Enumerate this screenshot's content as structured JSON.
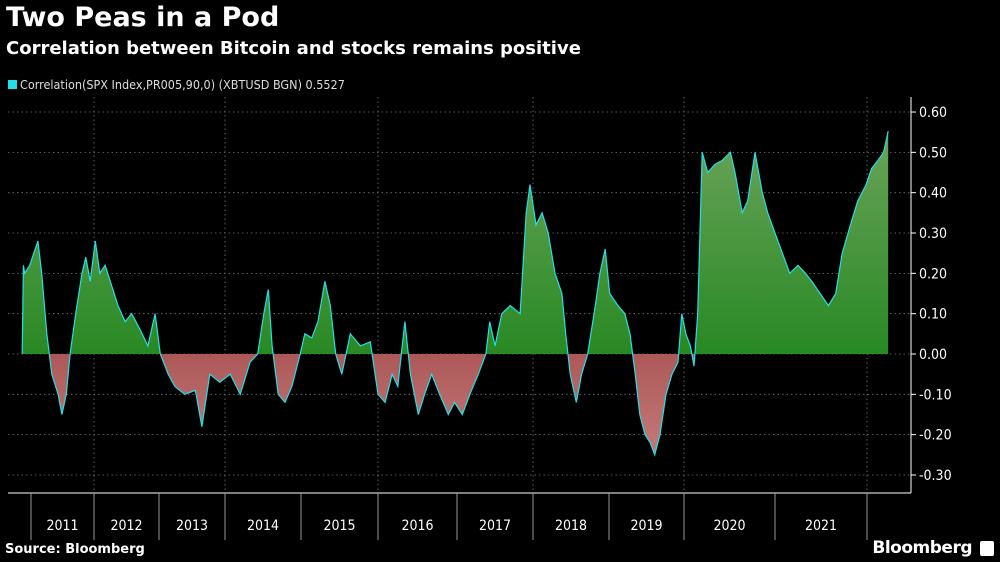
{
  "title": "Two Peas in a Pod",
  "subtitle": "Correlation between Bitcoin and stocks remains positive",
  "source": "Source: Bloomberg",
  "brand": "Bloomberg",
  "chart_data": {
    "type": "area",
    "title": "Two Peas in a Pod",
    "subtitle": "Correlation between Bitcoin and stocks remains positive",
    "legend": {
      "position": "top-left",
      "label": "Correlation(SPX Index,PR005,90,0) (XBTUSD BGN) 0.5527"
    },
    "colors": {
      "line": "#22e0e8",
      "positive_fill": "#1f8a1f",
      "negative_fill": "#8a1414",
      "background": "#000000"
    },
    "x_axis": {
      "type": "date",
      "tick_labels": [
        "2011",
        "2012",
        "2013",
        "2014",
        "2015",
        "2016",
        "2017",
        "2018",
        "2019",
        "2020",
        "2021"
      ]
    },
    "y_axis": {
      "position": "right",
      "ylim": [
        -0.3,
        0.6
      ],
      "tick_labels": [
        "0.60",
        "0.50",
        "0.40",
        "0.30",
        "0.20",
        "0.10",
        "0.00",
        "-0.10",
        "-0.20",
        "-0.30"
      ]
    },
    "grid": true,
    "series": [
      {
        "name": "Correlation(SPX Index,PR005,90,0) (XBTUSD BGN)",
        "last_value": 0.5527,
        "x": [
          2010.86,
          2010.88,
          2010.9,
          2010.98,
          2011.11,
          2011.17,
          2011.25,
          2011.33,
          2011.43,
          2011.49,
          2011.56,
          2011.62,
          2011.71,
          2011.81,
          2011.87,
          2011.94,
          2012.02,
          2012.09,
          2012.17,
          2012.25,
          2012.37,
          2012.48,
          2012.58,
          2012.71,
          2012.83,
          2012.94,
          2013.02,
          2013.14,
          2013.24,
          2013.39,
          2013.55,
          2013.65,
          2013.77,
          2013.92,
          2014.07,
          2014.2,
          2014.33,
          2014.43,
          2014.51,
          2014.57,
          2014.62,
          2014.7,
          2014.79,
          2014.88,
          2014.99,
          2015.05,
          2015.14,
          2015.22,
          2015.31,
          2015.38,
          2015.45,
          2015.53,
          2015.64,
          2015.77,
          2015.9,
          2016.0,
          2016.09,
          2016.18,
          2016.25,
          2016.34,
          2016.41,
          2016.51,
          2016.59,
          2016.68,
          2016.78,
          2016.89,
          2016.97,
          2017.07,
          2017.17,
          2017.28,
          2017.38,
          2017.43,
          2017.5,
          2017.59,
          2017.7,
          2017.83,
          2017.91,
          2017.96,
          2018.04,
          2018.12,
          2018.2,
          2018.29,
          2018.38,
          2018.43,
          2018.49,
          2018.57,
          2018.64,
          2018.72,
          2018.82,
          2018.88,
          2018.95,
          2019.01,
          2019.12,
          2019.21,
          2019.28,
          2019.35,
          2019.41,
          2019.48,
          2019.55,
          2019.61,
          2019.68,
          2019.76,
          2019.84,
          2019.92,
          2019.97,
          2020.02,
          2020.07,
          2020.11,
          2020.15,
          2020.2,
          2020.26,
          2020.34,
          2020.42,
          2020.51,
          2020.56,
          2020.64,
          2020.7,
          2020.78,
          2020.86,
          2020.92,
          2021.0,
          2021.08,
          2021.16,
          2021.25,
          2021.33,
          2021.4,
          2021.49,
          2021.58,
          2021.66,
          2021.73,
          2021.82,
          2021.9,
          2021.99,
          2022.05,
          2022.12,
          2022.18,
          2022.23
        ],
        "values": [
          0.0,
          0.22,
          0.2,
          0.22,
          0.28,
          0.2,
          0.05,
          -0.05,
          -0.1,
          -0.15,
          -0.1,
          0.0,
          0.1,
          0.2,
          0.24,
          0.18,
          0.28,
          0.2,
          0.22,
          0.18,
          0.12,
          0.08,
          0.1,
          0.06,
          0.02,
          0.1,
          0.0,
          -0.05,
          -0.08,
          -0.1,
          -0.09,
          -0.18,
          -0.05,
          -0.07,
          -0.05,
          -0.1,
          -0.02,
          0.0,
          0.1,
          0.16,
          0.02,
          -0.1,
          -0.12,
          -0.08,
          0.0,
          0.05,
          0.04,
          0.08,
          0.18,
          0.12,
          0.0,
          -0.05,
          0.05,
          0.02,
          0.03,
          -0.1,
          -0.12,
          -0.05,
          -0.08,
          0.08,
          -0.05,
          -0.15,
          -0.1,
          -0.05,
          -0.1,
          -0.15,
          -0.12,
          -0.15,
          -0.1,
          -0.05,
          0.0,
          0.08,
          0.02,
          0.1,
          0.12,
          0.1,
          0.35,
          0.42,
          0.32,
          0.35,
          0.3,
          0.2,
          0.15,
          0.05,
          -0.05,
          -0.12,
          -0.05,
          0.0,
          0.12,
          0.2,
          0.26,
          0.15,
          0.12,
          0.1,
          0.05,
          -0.05,
          -0.15,
          -0.2,
          -0.22,
          -0.25,
          -0.2,
          -0.1,
          -0.05,
          -0.02,
          0.1,
          0.05,
          0.02,
          -0.03,
          0.1,
          0.5,
          0.45,
          0.47,
          0.48,
          0.5,
          0.45,
          0.35,
          0.38,
          0.5,
          0.4,
          0.35,
          0.3,
          0.25,
          0.2,
          0.22,
          0.2,
          0.18,
          0.15,
          0.12,
          0.15,
          0.25,
          0.32,
          0.38,
          0.42,
          0.46,
          0.48,
          0.5,
          0.5527
        ]
      }
    ]
  }
}
